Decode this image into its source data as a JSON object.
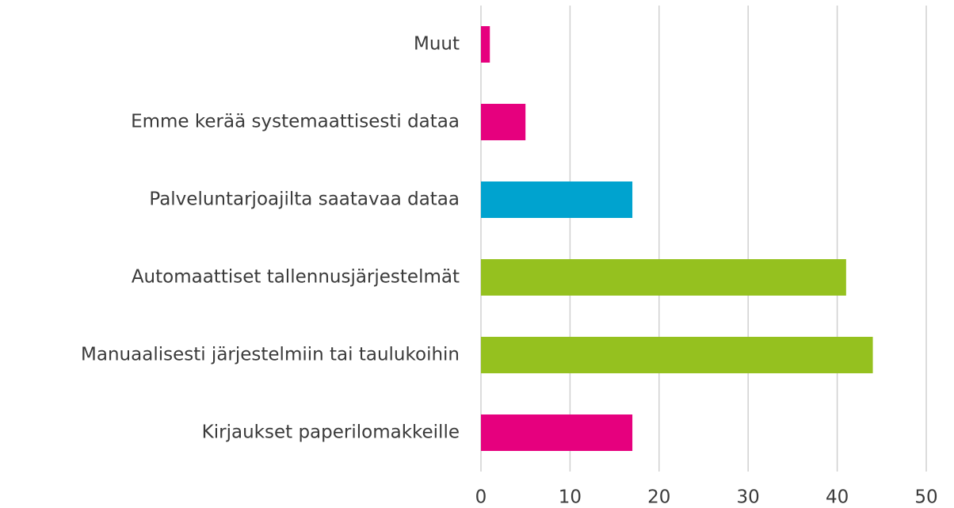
{
  "chart_data": {
    "type": "barh",
    "categories": [
      "Muut",
      "Emme kerää systemaattisesti dataa",
      "Palveluntarjoajilta saatavaa dataa",
      "Automaattiset tallennusjärjestelmät",
      "Manuaalisesti järjestelmiin tai taulukoihin",
      "Kirjaukset paperilomakkeille"
    ],
    "values": [
      1,
      5,
      17,
      41,
      44,
      17
    ],
    "colors": [
      "#e6007e",
      "#e6007e",
      "#00a3cf",
      "#95c11f",
      "#95c11f",
      "#e6007e"
    ],
    "xlim": [
      0,
      50
    ],
    "xticks": [
      0,
      10,
      20,
      30,
      40,
      50
    ],
    "grid": true
  }
}
